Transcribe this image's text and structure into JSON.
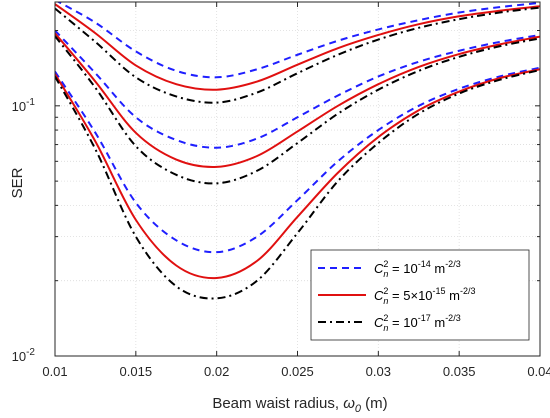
{
  "chart_data": {
    "type": "line",
    "xlabel": "Beam waist radius, ",
    "xlabel_symbol": "ω",
    "xlabel_sub": "0",
    "xlabel_unit": " (m)",
    "ylabel": "SER",
    "xlim": [
      0.01,
      0.04
    ],
    "ylim": [
      0.01,
      0.26
    ],
    "yscale": "log",
    "grid": true,
    "legend_position": "bottom-right",
    "x_ticks": [
      "0.01",
      "0.015",
      "0.02",
      "0.025",
      "0.03",
      "0.035",
      "0.04"
    ],
    "y_ticks": [
      {
        "base": "10",
        "exp": "-2",
        "value": 0.01
      },
      {
        "base": "10",
        "exp": "-1",
        "value": 0.1
      }
    ],
    "x": [
      0.01,
      0.0125,
      0.015,
      0.0175,
      0.02,
      0.0225,
      0.025,
      0.0275,
      0.03,
      0.0325,
      0.035,
      0.0375,
      0.04
    ],
    "groups": [
      {
        "series": [
          {
            "style": "dash",
            "values": [
              0.265,
              0.215,
              0.165,
              0.138,
              0.13,
              0.14,
              0.16,
              0.182,
              0.202,
              0.22,
              0.236,
              0.248,
              0.258
            ]
          },
          {
            "style": "solid",
            "values": [
              0.255,
              0.195,
              0.145,
              0.122,
              0.116,
              0.125,
              0.146,
              0.17,
              0.192,
              0.212,
              0.228,
              0.24,
              0.25
            ]
          },
          {
            "style": "dashdot",
            "values": [
              0.245,
              0.18,
              0.13,
              0.109,
              0.103,
              0.113,
              0.135,
              0.16,
              0.184,
              0.205,
              0.222,
              0.236,
              0.247
            ]
          }
        ]
      },
      {
        "series": [
          {
            "style": "dash",
            "values": [
              0.2,
              0.135,
              0.09,
              0.073,
              0.068,
              0.074,
              0.09,
              0.11,
              0.131,
              0.15,
              0.166,
              0.18,
              0.192
            ]
          },
          {
            "style": "solid",
            "values": [
              0.195,
              0.125,
              0.078,
              0.061,
              0.057,
              0.063,
              0.079,
              0.1,
              0.122,
              0.143,
              0.161,
              0.176,
              0.189
            ]
          },
          {
            "style": "dashdot",
            "values": [
              0.19,
              0.118,
              0.069,
              0.053,
              0.049,
              0.055,
              0.071,
              0.093,
              0.116,
              0.138,
              0.157,
              0.173,
              0.186
            ]
          }
        ]
      },
      {
        "series": [
          {
            "style": "dash",
            "values": [
              0.137,
              0.078,
              0.041,
              0.029,
              0.026,
              0.03,
              0.042,
              0.06,
              0.08,
              0.1,
              0.117,
              0.131,
              0.142
            ]
          },
          {
            "style": "solid",
            "values": [
              0.134,
              0.072,
              0.035,
              0.023,
              0.0205,
              0.024,
              0.036,
              0.054,
              0.075,
              0.096,
              0.114,
              0.129,
              0.14
            ]
          },
          {
            "style": "dashdot",
            "values": [
              0.131,
              0.067,
              0.03,
              0.019,
              0.017,
              0.02,
              0.031,
              0.05,
              0.071,
              0.093,
              0.112,
              0.127,
              0.139
            ]
          }
        ]
      }
    ],
    "legend": [
      {
        "style": "dash",
        "color": "#1f1fff",
        "sym": "C",
        "sup": "2",
        "sub": "n",
        "eq": " = ",
        "pre": "",
        "base": "10",
        "exp": "-14",
        "unit": " m",
        "unit_exp": "-2/3"
      },
      {
        "style": "solid",
        "color": "#e01010",
        "sym": "C",
        "sup": "2",
        "sub": "n",
        "eq": " = ",
        "pre": "5×",
        "base": "10",
        "exp": "-15",
        "unit": " m",
        "unit_exp": "-2/3"
      },
      {
        "style": "dashdot",
        "color": "#000000",
        "sym": "C",
        "sup": "2",
        "sub": "n",
        "eq": " = ",
        "pre": "",
        "base": "10",
        "exp": "-17",
        "unit": " m",
        "unit_exp": "-2/3"
      }
    ],
    "colors": {
      "dash": "#1f1fff",
      "solid": "#e01010",
      "dashdot": "#000000",
      "grid": "#dcdcdc",
      "axis": "#262626"
    }
  }
}
